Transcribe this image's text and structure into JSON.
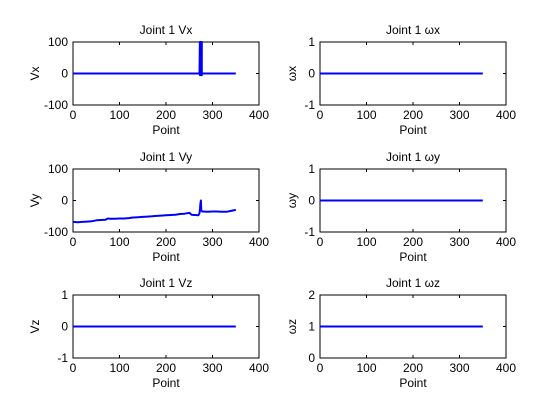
{
  "chart_data": [
    {
      "type": "line",
      "title": "Joint 1 Vx",
      "xlabel": "Point",
      "ylabel": "Vx",
      "xlim": [
        0,
        400
      ],
      "ylim": [
        -100,
        100
      ],
      "xticks": [
        "0",
        "100",
        "200",
        "300",
        "400"
      ],
      "yticks": [
        "-100",
        "0",
        "100"
      ],
      "grid": false,
      "series": [
        {
          "color": "#0000ff",
          "x": [
            0,
            272,
            273,
            273,
            274,
            274,
            275,
            275,
            276,
            276,
            277,
            277,
            278,
            279,
            350
          ],
          "y": [
            0,
            0,
            100,
            -5,
            100,
            -5,
            100,
            -5,
            100,
            -5,
            100,
            -5,
            0,
            0,
            0
          ]
        }
      ]
    },
    {
      "type": "line",
      "title": "Joint 1 ωx",
      "xlabel": "Point",
      "ylabel": "ωx",
      "xlim": [
        0,
        400
      ],
      "ylim": [
        -1,
        1
      ],
      "xticks": [
        "0",
        "100",
        "200",
        "300",
        "400"
      ],
      "yticks": [
        "-1",
        "0",
        "1"
      ],
      "grid": false,
      "series": [
        {
          "color": "#0000ff",
          "x": [
            0,
            350
          ],
          "y": [
            0,
            0
          ]
        }
      ]
    },
    {
      "type": "line",
      "title": "Joint 1 Vy",
      "xlabel": "Point",
      "ylabel": "Vy",
      "xlim": [
        0,
        400
      ],
      "ylim": [
        -100,
        100
      ],
      "xticks": [
        "0",
        "100",
        "200",
        "300",
        "400"
      ],
      "yticks": [
        "-100",
        "0",
        "100"
      ],
      "grid": false,
      "series": [
        {
          "color": "#0000ff",
          "x": [
            0,
            10,
            20,
            30,
            40,
            50,
            60,
            70,
            75,
            80,
            90,
            100,
            110,
            120,
            125,
            130,
            140,
            150,
            160,
            170,
            180,
            190,
            200,
            210,
            220,
            230,
            240,
            250,
            255,
            260,
            265,
            268,
            270,
            272,
            273,
            274,
            275,
            276,
            278,
            280,
            290,
            300,
            310,
            320,
            330,
            340,
            350
          ],
          "y": [
            -68,
            -69,
            -68,
            -67,
            -66,
            -63,
            -62,
            -61,
            -57,
            -58,
            -58,
            -57,
            -57,
            -56,
            -55,
            -54,
            -53,
            -52,
            -51,
            -50,
            -49,
            -48,
            -47,
            -46,
            -45,
            -43,
            -42,
            -39,
            -45,
            -46,
            -46,
            -47,
            -46,
            -40,
            -30,
            -10,
            0,
            -32,
            -35,
            -35,
            -36,
            -35,
            -35,
            -36,
            -36,
            -33,
            -30
          ]
        }
      ]
    },
    {
      "type": "line",
      "title": "Joint 1 ωy",
      "xlabel": "Point",
      "ylabel": "ωy",
      "xlim": [
        0,
        400
      ],
      "ylim": [
        -1,
        1
      ],
      "xticks": [
        "0",
        "100",
        "200",
        "300",
        "400"
      ],
      "yticks": [
        "-1",
        "0",
        "1"
      ],
      "grid": false,
      "series": [
        {
          "color": "#0000ff",
          "x": [
            0,
            350
          ],
          "y": [
            0,
            0
          ]
        }
      ]
    },
    {
      "type": "line",
      "title": "Joint 1 Vz",
      "xlabel": "Point",
      "ylabel": "Vz",
      "xlim": [
        0,
        400
      ],
      "ylim": [
        -1,
        1
      ],
      "xticks": [
        "0",
        "100",
        "200",
        "300",
        "400"
      ],
      "yticks": [
        "-1",
        "0",
        "1"
      ],
      "grid": false,
      "series": [
        {
          "color": "#0000ff",
          "x": [
            0,
            350
          ],
          "y": [
            0,
            0
          ]
        }
      ]
    },
    {
      "type": "line",
      "title": "Joint 1 ωz",
      "xlabel": "Point",
      "ylabel": "ωz",
      "xlim": [
        0,
        400
      ],
      "ylim": [
        0,
        2
      ],
      "xticks": [
        "0",
        "100",
        "200",
        "300",
        "400"
      ],
      "yticks": [
        "0",
        "1",
        "2"
      ],
      "grid": false,
      "series": [
        {
          "color": "#0000ff",
          "x": [
            0,
            350
          ],
          "y": [
            1,
            1
          ]
        }
      ]
    }
  ]
}
